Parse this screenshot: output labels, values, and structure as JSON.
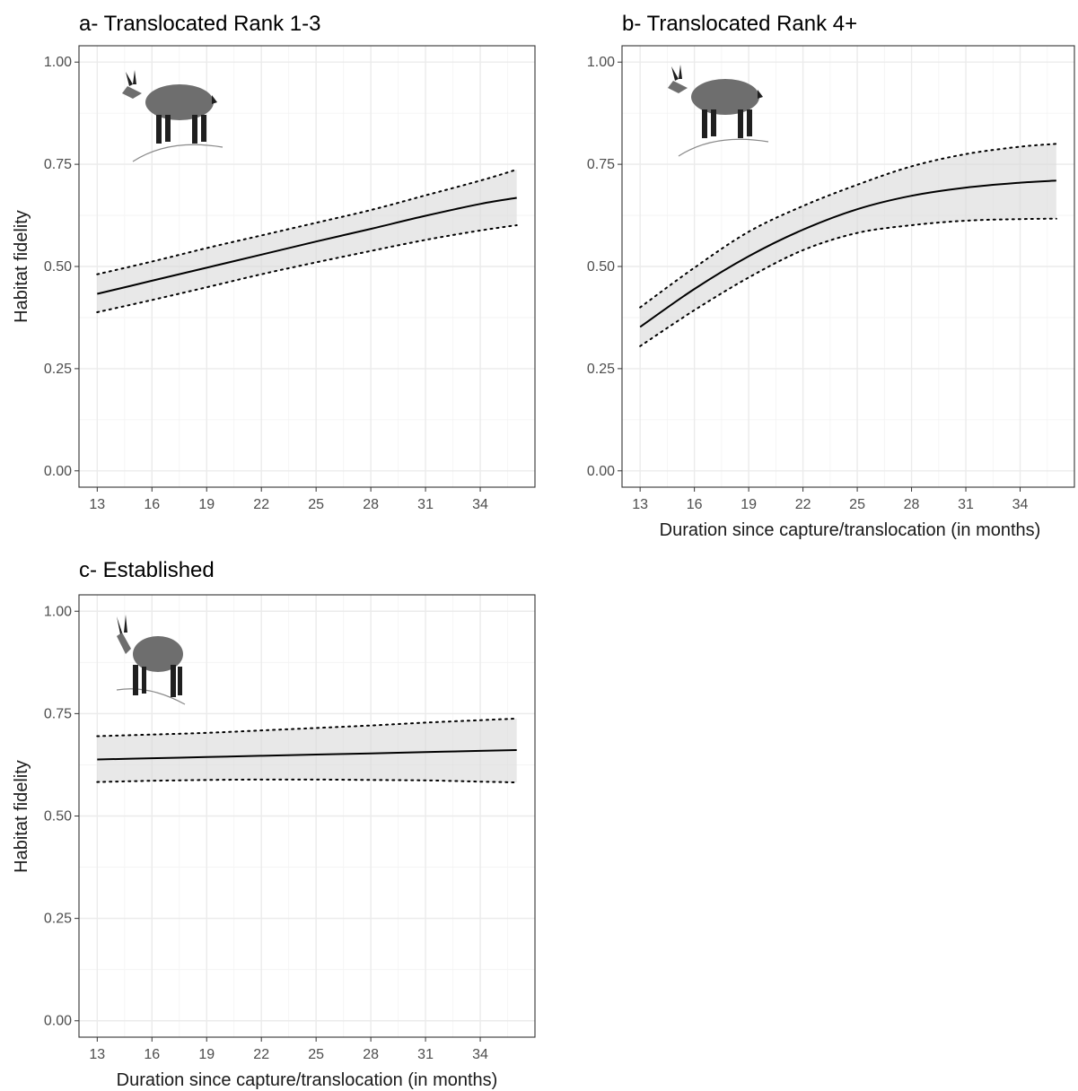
{
  "figure": {
    "y_axis_title": "Habitat fidelity",
    "x_axis_title": "Duration since capture/translocation (in months)"
  },
  "chart_data": [
    {
      "id": "a",
      "type": "line",
      "title": "a- Translocated Rank 1-3",
      "xlabel": "",
      "ylabel": "Habitat fidelity",
      "xlim": [
        12,
        37
      ],
      "ylim": [
        -0.04,
        1.04
      ],
      "x_ticks": [
        13,
        16,
        19,
        22,
        25,
        28,
        31,
        34
      ],
      "y_ticks": [
        0.0,
        0.25,
        0.5,
        0.75,
        1.0
      ],
      "y_tick_labels": [
        "0.00",
        "0.25",
        "0.50",
        "0.75",
        "1.00"
      ],
      "grid": true,
      "x": [
        13,
        16,
        19,
        22,
        25,
        28,
        31,
        34,
        36
      ],
      "fit": [
        0.433,
        0.465,
        0.497,
        0.529,
        0.561,
        0.592,
        0.624,
        0.653,
        0.668
      ],
      "lower": [
        0.388,
        0.418,
        0.449,
        0.481,
        0.51,
        0.538,
        0.565,
        0.588,
        0.601
      ],
      "upper": [
        0.481,
        0.512,
        0.545,
        0.576,
        0.607,
        0.638,
        0.674,
        0.71,
        0.737
      ],
      "illustration": "ibex-female-icon"
    },
    {
      "id": "b",
      "type": "line",
      "title": "b- Translocated Rank 4+",
      "xlabel": "Duration since capture/translocation (in months)",
      "ylabel": "",
      "xlim": [
        12,
        37
      ],
      "ylim": [
        -0.04,
        1.04
      ],
      "x_ticks": [
        13,
        16,
        19,
        22,
        25,
        28,
        31,
        34
      ],
      "y_ticks": [
        0.0,
        0.25,
        0.5,
        0.75,
        1.0
      ],
      "y_tick_labels": [
        "0.00",
        "0.25",
        "0.50",
        "0.75",
        "1.00"
      ],
      "grid": true,
      "x": [
        13,
        16,
        19,
        22,
        25,
        28,
        31,
        34,
        36
      ],
      "fit": [
        0.352,
        0.445,
        0.525,
        0.59,
        0.64,
        0.673,
        0.693,
        0.705,
        0.71
      ],
      "lower": [
        0.305,
        0.393,
        0.473,
        0.54,
        0.582,
        0.601,
        0.612,
        0.616,
        0.617
      ],
      "upper": [
        0.4,
        0.497,
        0.585,
        0.648,
        0.7,
        0.745,
        0.775,
        0.793,
        0.8
      ],
      "illustration": "ibex-female-icon"
    },
    {
      "id": "c",
      "type": "line",
      "title": "c- Established",
      "xlabel": "Duration since capture/translocation (in months)",
      "ylabel": "Habitat fidelity",
      "xlim": [
        12,
        37
      ],
      "ylim": [
        -0.04,
        1.04
      ],
      "x_ticks": [
        13,
        16,
        19,
        22,
        25,
        28,
        31,
        34
      ],
      "y_ticks": [
        0.0,
        0.25,
        0.5,
        0.75,
        1.0
      ],
      "y_tick_labels": [
        "0.00",
        "0.25",
        "0.50",
        "0.75",
        "1.00"
      ],
      "grid": true,
      "x": [
        13,
        16,
        19,
        22,
        25,
        28,
        31,
        34,
        36
      ],
      "fit": [
        0.638,
        0.641,
        0.644,
        0.647,
        0.65,
        0.653,
        0.656,
        0.659,
        0.661
      ],
      "lower": [
        0.583,
        0.586,
        0.588,
        0.589,
        0.589,
        0.588,
        0.587,
        0.584,
        0.582
      ],
      "upper": [
        0.695,
        0.699,
        0.703,
        0.709,
        0.715,
        0.721,
        0.728,
        0.734,
        0.738
      ],
      "illustration": "ibex-male-icon"
    }
  ]
}
